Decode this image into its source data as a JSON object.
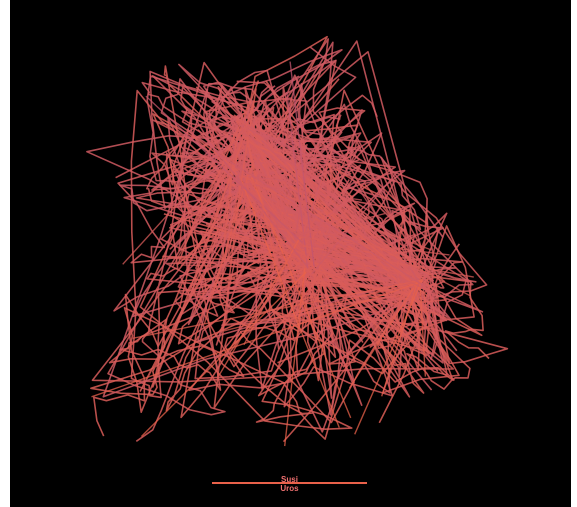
{
  "colors": {
    "background": "#000000",
    "route_a": "#c2566f",
    "route_b": "#e9614a",
    "route_a_label": "#f07070",
    "route_b_label": "#f07070"
  },
  "legend": {
    "label_a": "Susi",
    "label_b": "Uros"
  }
}
